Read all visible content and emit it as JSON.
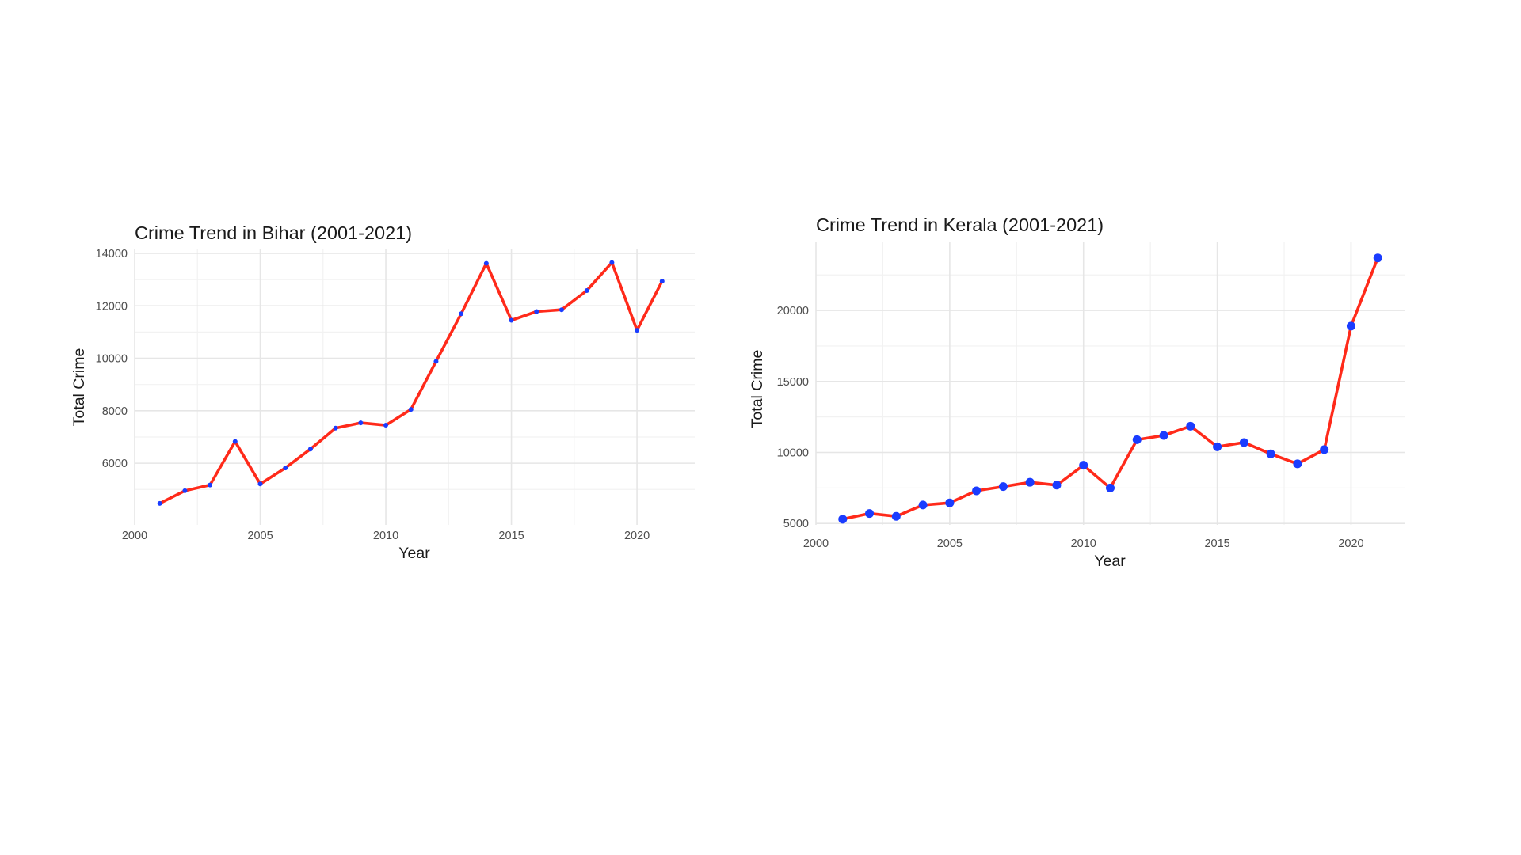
{
  "chart_data": [
    {
      "type": "line",
      "title": "Crime Trend in Bihar (2001-2021)",
      "xlabel": "Year",
      "ylabel": "Total Crime",
      "xlim": [
        2000,
        2022.3
      ],
      "ylim": [
        3650,
        14150
      ],
      "x_ticks": [
        2000,
        2005,
        2010,
        2015,
        2020
      ],
      "y_ticks": [
        6000,
        8000,
        10000,
        12000,
        14000
      ],
      "grid": true,
      "legend": "none",
      "x": [
        2001,
        2002,
        2003,
        2004,
        2005,
        2006,
        2007,
        2008,
        2009,
        2010,
        2011,
        2012,
        2013,
        2014,
        2015,
        2016,
        2017,
        2018,
        2019,
        2020,
        2021
      ],
      "series": [
        {
          "values": [
            4470,
            4950,
            5170,
            6830,
            5210,
            5820,
            6540,
            7340,
            7540,
            7450,
            8050,
            9880,
            11700,
            13620,
            11450,
            11780,
            11850,
            12580,
            13650,
            11070,
            12940
          ]
        }
      ]
    },
    {
      "type": "line",
      "title": "Crime Trend in Kerala (2001-2021)",
      "xlabel": "Year",
      "ylabel": "Total Crime",
      "xlim": [
        2000,
        2022
      ],
      "ylim": [
        4900,
        24800
      ],
      "x_ticks": [
        2000,
        2005,
        2010,
        2015,
        2020
      ],
      "y_ticks": [
        5000,
        10000,
        15000,
        20000
      ],
      "grid": true,
      "legend": "none",
      "x": [
        2001,
        2002,
        2003,
        2004,
        2005,
        2006,
        2007,
        2008,
        2009,
        2010,
        2011,
        2012,
        2013,
        2014,
        2015,
        2016,
        2017,
        2018,
        2019,
        2020,
        2021
      ],
      "series": [
        {
          "values": [
            5300,
            5700,
            5500,
            6300,
            6450,
            7300,
            7600,
            7900,
            7700,
            9100,
            7500,
            10900,
            11200,
            11850,
            10400,
            10700,
            9900,
            9200,
            10200,
            18900,
            23700
          ]
        }
      ]
    }
  ],
  "colors": {
    "line": "#ff2a1a",
    "point": "#1a3cff",
    "grid_major": "#e6e6e6",
    "grid_minor": "#f2f2f2",
    "text": "#1a1a1a",
    "tick_text": "#4d4d4d"
  }
}
